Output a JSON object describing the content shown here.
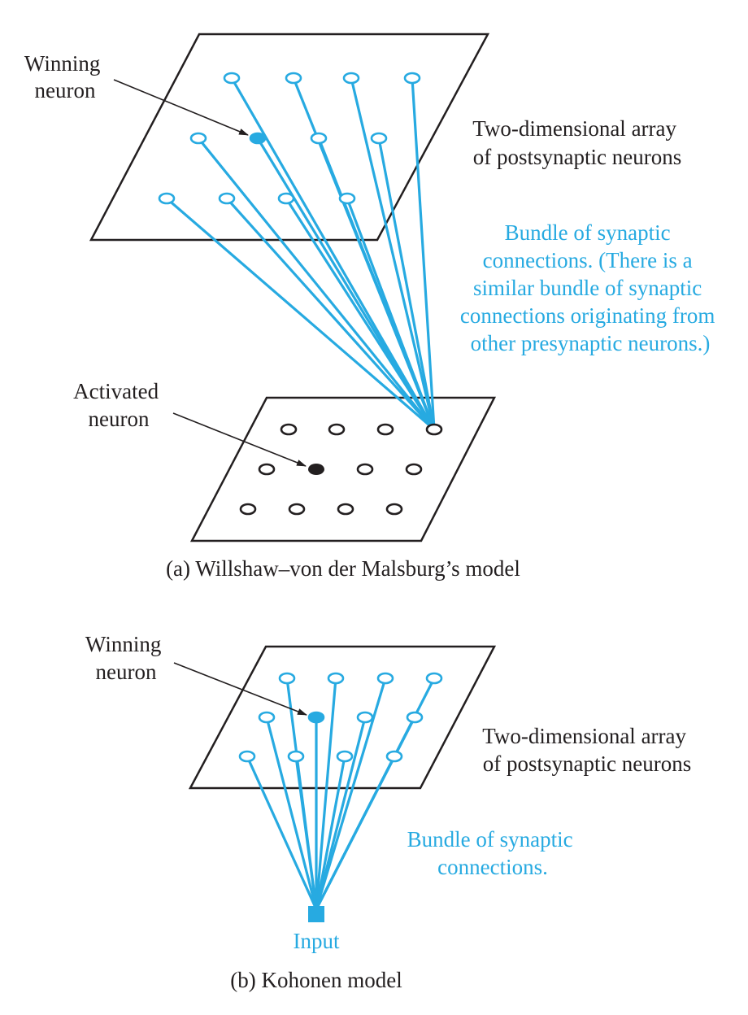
{
  "colors": {
    "ink": "#231f20",
    "accent": "#27aae1",
    "background": "#ffffff"
  },
  "panel_a": {
    "winning_label": [
      "Winning",
      "neuron"
    ],
    "array_label": [
      "Two-dimensional array",
      "of postsynaptic neurons"
    ],
    "bundle_label": [
      "Bundle of synaptic",
      "connections. (There is a",
      "similar bundle of synaptic",
      "connections originating from",
      "other presynaptic neurons.)"
    ],
    "activated_label": [
      "Activated",
      "neuron"
    ],
    "caption": "(a) Willshaw–von der Malsburg’s model"
  },
  "panel_b": {
    "winning_label": [
      "Winning",
      "neuron"
    ],
    "array_label": [
      "Two-dimensional array",
      "of postsynaptic neurons"
    ],
    "bundle_label": [
      "Bundle of synaptic",
      "connections."
    ],
    "input_label": "Input",
    "caption": "(b) Kohonen model"
  }
}
